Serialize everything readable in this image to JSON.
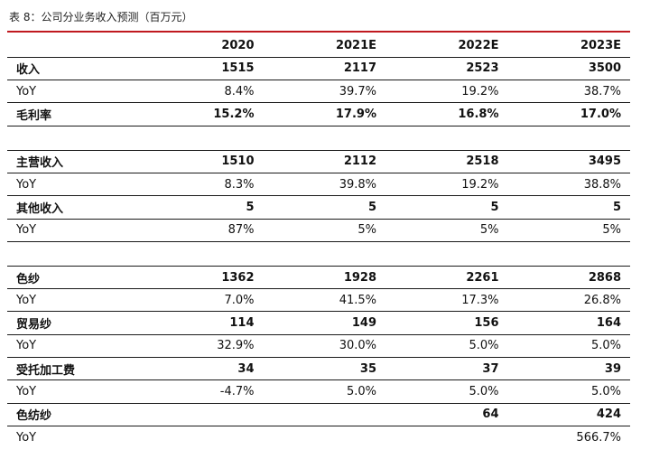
{
  "caption": "表 8：公司分业务收入预测（百万元）",
  "accent_color": "#c0191f",
  "table": {
    "columns": [
      "",
      "2020",
      "2021E",
      "2022E",
      "2023E"
    ],
    "rows": [
      {
        "label": "收入",
        "values": [
          "1515",
          "2117",
          "2523",
          "3500"
        ]
      },
      {
        "label": "YoY",
        "values": [
          "8.4%",
          "39.7%",
          "19.2%",
          "38.7%"
        ]
      },
      {
        "label": "毛利率",
        "values": [
          "15.2%",
          "17.9%",
          "16.8%",
          "17.0%"
        ]
      },
      {
        "label": "主营收入",
        "values": [
          "1510",
          "2112",
          "2518",
          "3495"
        ]
      },
      {
        "label": "YoY",
        "values": [
          "8.3%",
          "39.8%",
          "19.2%",
          "38.8%"
        ]
      },
      {
        "label": "其他收入",
        "values": [
          "5",
          "5",
          "5",
          "5"
        ]
      },
      {
        "label": "YoY",
        "values": [
          "87%",
          "5%",
          "5%",
          "5%"
        ]
      },
      {
        "label": "色纱",
        "values": [
          "1362",
          "1928",
          "2261",
          "2868"
        ]
      },
      {
        "label": "YoY",
        "values": [
          "7.0%",
          "41.5%",
          "17.3%",
          "26.8%"
        ]
      },
      {
        "label": "贸易纱",
        "values": [
          "114",
          "149",
          "156",
          "164"
        ]
      },
      {
        "label": "YoY",
        "values": [
          "32.9%",
          "30.0%",
          "5.0%",
          "5.0%"
        ]
      },
      {
        "label": "受托加工费",
        "values": [
          "34",
          "35",
          "37",
          "39"
        ]
      },
      {
        "label": "YoY",
        "values": [
          "-4.7%",
          "5.0%",
          "5.0%",
          "5.0%"
        ]
      },
      {
        "label": "色纺纱",
        "values": [
          "",
          "",
          "64",
          "424"
        ]
      },
      {
        "label": "YoY",
        "values": [
          "",
          "",
          "",
          "566.7%"
        ]
      }
    ]
  }
}
